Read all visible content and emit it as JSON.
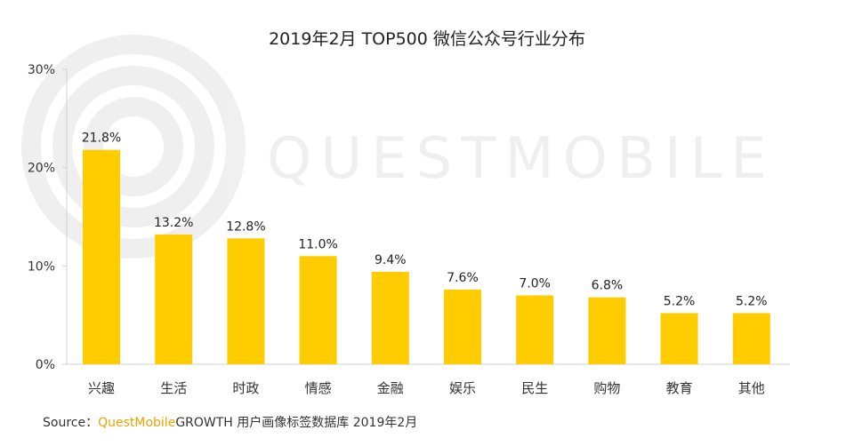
{
  "chart_data": {
    "type": "bar",
    "title": "2019年2月 TOP500 微信公众号行业分布",
    "categories": [
      "兴趣",
      "生活",
      "时政",
      "情感",
      "金融",
      "娱乐",
      "民生",
      "购物",
      "教育",
      "其他"
    ],
    "values": [
      21.8,
      13.2,
      12.8,
      11.0,
      9.4,
      7.6,
      7.0,
      6.8,
      5.2,
      5.2
    ],
    "value_labels": [
      "21.8%",
      "13.2%",
      "12.8%",
      "11.0%",
      "9.4%",
      "7.6%",
      "7.0%",
      "6.8%",
      "5.2%",
      "5.2%"
    ],
    "yticks": [
      0,
      10,
      20,
      30
    ],
    "ytick_labels": [
      "0%",
      "10%",
      "20%",
      "30%"
    ],
    "ylim": [
      0,
      30
    ],
    "xlabel": "",
    "ylabel": "",
    "grid": false,
    "bar_color": "#FFCC00"
  },
  "watermark": "QUESTMOBILE",
  "source": {
    "prefix": "Source：",
    "brand": "QuestMobile",
    "rest": "GROWTH 用户画像标签数据库  2019年2月"
  }
}
